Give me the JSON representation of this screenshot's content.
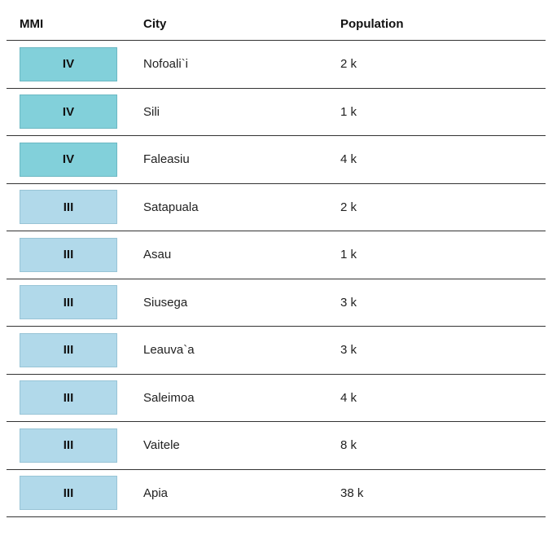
{
  "header": {
    "mmi": "MMI",
    "city": "City",
    "population": "Population"
  },
  "colors": {
    "mmi_IV": "#82d0da",
    "mmi_III": "#b1d9ea"
  },
  "rows": [
    {
      "mmi": "IV",
      "city": "Nofoali`i",
      "population": "2 k"
    },
    {
      "mmi": "IV",
      "city": "Sili",
      "population": "1 k"
    },
    {
      "mmi": "IV",
      "city": "Faleasiu",
      "population": "4 k"
    },
    {
      "mmi": "III",
      "city": "Satapuala",
      "population": "2 k"
    },
    {
      "mmi": "III",
      "city": "Asau",
      "population": "1 k"
    },
    {
      "mmi": "III",
      "city": "Siusega",
      "population": "3 k"
    },
    {
      "mmi": "III",
      "city": "Leauva`a",
      "population": "3 k"
    },
    {
      "mmi": "III",
      "city": "Saleimoa",
      "population": "4 k"
    },
    {
      "mmi": "III",
      "city": "Vaitele",
      "population": "8 k"
    },
    {
      "mmi": "III",
      "city": "Apia",
      "population": "38 k"
    }
  ]
}
